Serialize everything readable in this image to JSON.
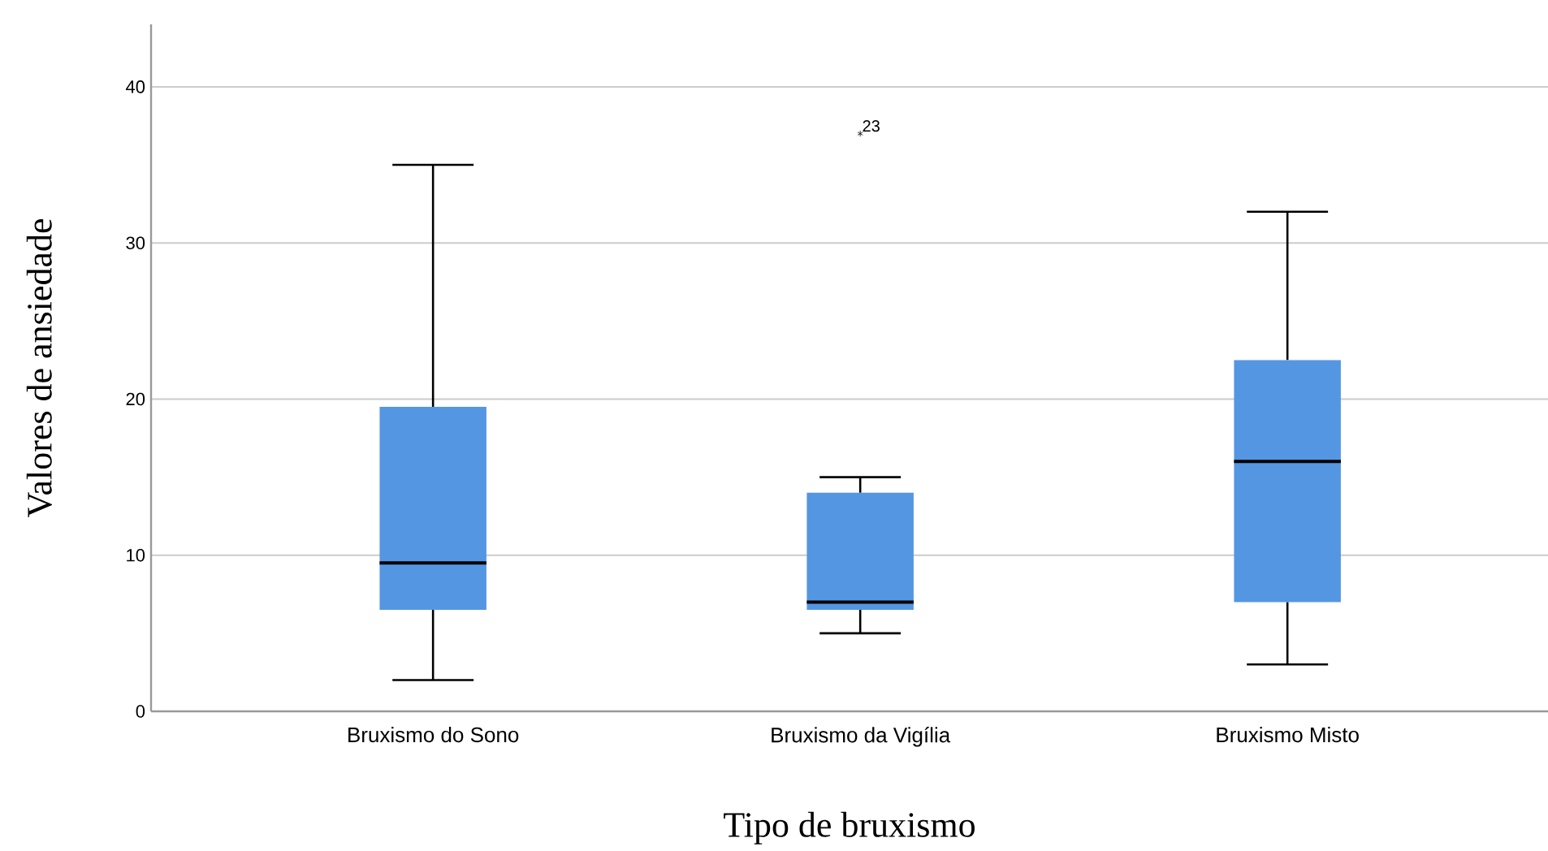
{
  "chart_data": {
    "type": "box",
    "xlabel": "Tipo de bruxismo",
    "ylabel": "Valores de ansiedade",
    "categories": [
      "Bruxismo do Sono",
      "Bruxismo da Vigília",
      "Bruxismo Misto"
    ],
    "color": "#5596e3",
    "boxes": [
      {
        "low": 2,
        "q1": 6.5,
        "median": 9.5,
        "q3": 19.5,
        "high": 35
      },
      {
        "low": 5,
        "q1": 6.5,
        "median": 7,
        "q3": 14,
        "high": 15,
        "outliers": [
          37
        ]
      },
      {
        "low": 3,
        "q1": 7,
        "median": 16,
        "q3": 22.5,
        "high": 32
      }
    ],
    "annotations": [
      "23"
    ],
    "marker": "star",
    "ylim": [
      0,
      44
    ],
    "yticks": [
      0,
      10,
      20,
      30,
      40
    ],
    "grid": "y"
  }
}
